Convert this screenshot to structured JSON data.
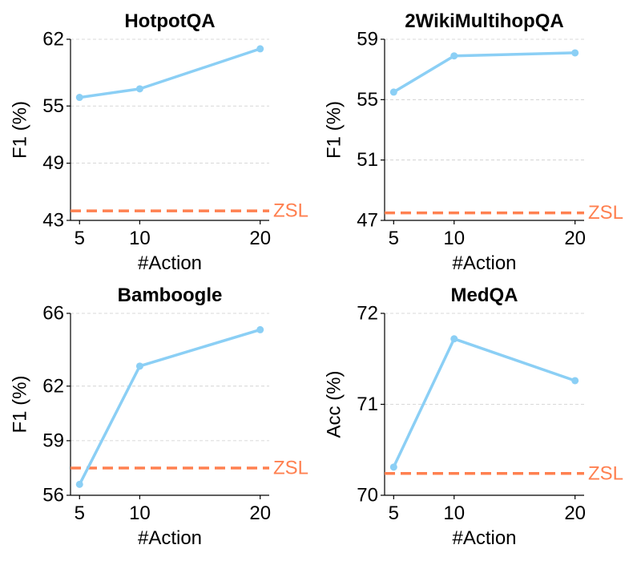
{
  "colors": {
    "line": "#8BCFF5",
    "baseline": "#FF8050",
    "axis": "#000000",
    "grid": "#cccccc"
  },
  "chart_data": [
    {
      "type": "line",
      "title": "HotpotQA",
      "xlabel": "#Action",
      "ylabel": "F1 (%)",
      "x": [
        5,
        10,
        20
      ],
      "series": [
        {
          "values": [
            55.9,
            56.8,
            61.0
          ]
        }
      ],
      "baseline": {
        "label": "ZSL",
        "value": 44.0
      },
      "yticks": [
        43,
        49,
        55,
        62
      ],
      "ylim": [
        43,
        62
      ],
      "grid": "horizontal"
    },
    {
      "type": "line",
      "title": "2WikiMultihopQA",
      "xlabel": "#Action",
      "ylabel": "F1 (%)",
      "x": [
        5,
        10,
        20
      ],
      "series": [
        {
          "values": [
            55.5,
            57.9,
            58.1
          ]
        }
      ],
      "baseline": {
        "label": "ZSL",
        "value": 47.5
      },
      "yticks": [
        47,
        51,
        55,
        59
      ],
      "ylim": [
        47,
        59
      ],
      "grid": "horizontal"
    },
    {
      "type": "line",
      "title": "Bamboogle",
      "xlabel": "#Action",
      "ylabel": "F1 (%)",
      "x": [
        5,
        10,
        20
      ],
      "series": [
        {
          "values": [
            56.6,
            63.1,
            65.1
          ]
        }
      ],
      "baseline": {
        "label": "ZSL",
        "value": 57.5
      },
      "yticks": [
        56,
        59,
        62,
        66
      ],
      "ylim": [
        56,
        66
      ],
      "grid": "horizontal"
    },
    {
      "type": "line",
      "title": "MedQA",
      "xlabel": "#Action",
      "ylabel": "Acc (%)",
      "x": [
        5,
        10,
        20
      ],
      "series": [
        {
          "values": [
            70.31,
            71.72,
            71.26
          ]
        }
      ],
      "baseline": {
        "label": "ZSL",
        "value": 70.24
      },
      "yticks": [
        70,
        71,
        72
      ],
      "ylim": [
        70,
        72
      ],
      "grid": "horizontal"
    }
  ]
}
